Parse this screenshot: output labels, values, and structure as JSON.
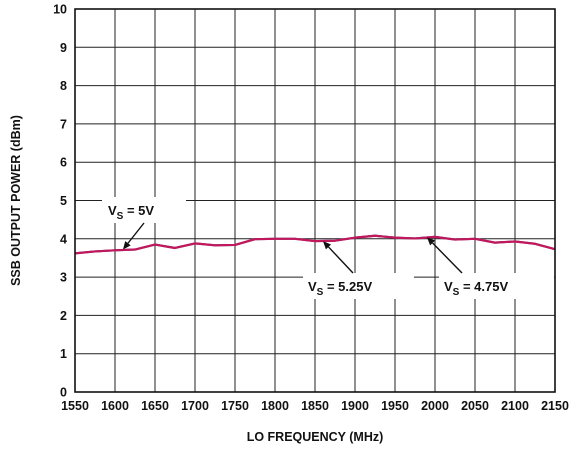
{
  "chart_data": {
    "type": "line",
    "xlabel": "LO FREQUENCY (MHz)",
    "ylabel": "SSB OUTPUT POWER (dBm)",
    "xlim": [
      1550,
      2150
    ],
    "ylim": [
      0,
      10
    ],
    "x_ticks": [
      1550,
      1600,
      1650,
      1700,
      1750,
      1800,
      1850,
      1900,
      1950,
      2000,
      2050,
      2100,
      2150
    ],
    "y_ticks": [
      0,
      1,
      2,
      3,
      4,
      5,
      6,
      7,
      8,
      9,
      10
    ],
    "grid": true,
    "series": [
      {
        "name": "VS = 5V",
        "color": "#c2185b",
        "x": [
          1550,
          1575,
          1600,
          1625,
          1650,
          1675,
          1700,
          1725,
          1750,
          1775,
          1800,
          1825,
          1850,
          1875,
          1900,
          1925,
          1950,
          1975,
          2000,
          2025,
          2050,
          2075,
          2100,
          2125,
          2150
        ],
        "y": [
          3.62,
          3.67,
          3.7,
          3.72,
          3.85,
          3.76,
          3.88,
          3.83,
          3.84,
          3.99,
          4.0,
          4.0,
          3.94,
          3.95,
          4.03,
          4.08,
          4.03,
          4.01,
          4.05,
          3.98,
          4.0,
          3.9,
          3.93,
          3.87,
          3.73
        ]
      },
      {
        "name": "VS = 5.25V",
        "color": "#2c3e91",
        "x": [
          1550,
          1575,
          1600,
          1625,
          1650,
          1675,
          1700,
          1725,
          1750,
          1775,
          1800,
          1825,
          1850,
          1875,
          1900,
          1925,
          1950,
          1975,
          2000,
          2025,
          2050,
          2075,
          2100,
          2125,
          2150
        ],
        "y": [
          3.63,
          3.68,
          3.71,
          3.73,
          3.86,
          3.77,
          3.89,
          3.84,
          3.85,
          4.0,
          4.01,
          4.01,
          3.95,
          3.96,
          4.04,
          4.09,
          4.04,
          4.02,
          4.06,
          3.99,
          4.01,
          3.91,
          3.94,
          3.88,
          3.74
        ]
      },
      {
        "name": "VS = 4.75V",
        "color": "#6a4c93",
        "x": [
          1550,
          1575,
          1600,
          1625,
          1650,
          1675,
          1700,
          1725,
          1750,
          1775,
          1800,
          1825,
          1850,
          1875,
          1900,
          1925,
          1950,
          1975,
          2000,
          2025,
          2050,
          2075,
          2100,
          2125,
          2150
        ],
        "y": [
          3.61,
          3.66,
          3.69,
          3.71,
          3.84,
          3.75,
          3.87,
          3.82,
          3.83,
          3.98,
          3.99,
          3.99,
          3.93,
          3.94,
          4.02,
          4.07,
          4.02,
          4.0,
          4.04,
          3.97,
          3.99,
          3.89,
          3.92,
          3.86,
          3.72
        ]
      }
    ],
    "annotations": [
      {
        "main": "V",
        "sub": "S",
        "value": " = 5V",
        "target_x": 1610,
        "target_y": 3.72
      },
      {
        "main": "V",
        "sub": "S",
        "value": " = 5.25V",
        "target_x": 1860,
        "target_y": 3.94
      },
      {
        "main": "V",
        "sub": "S",
        "value": " = 4.75V",
        "target_x": 1990,
        "target_y": 4.04
      }
    ]
  }
}
